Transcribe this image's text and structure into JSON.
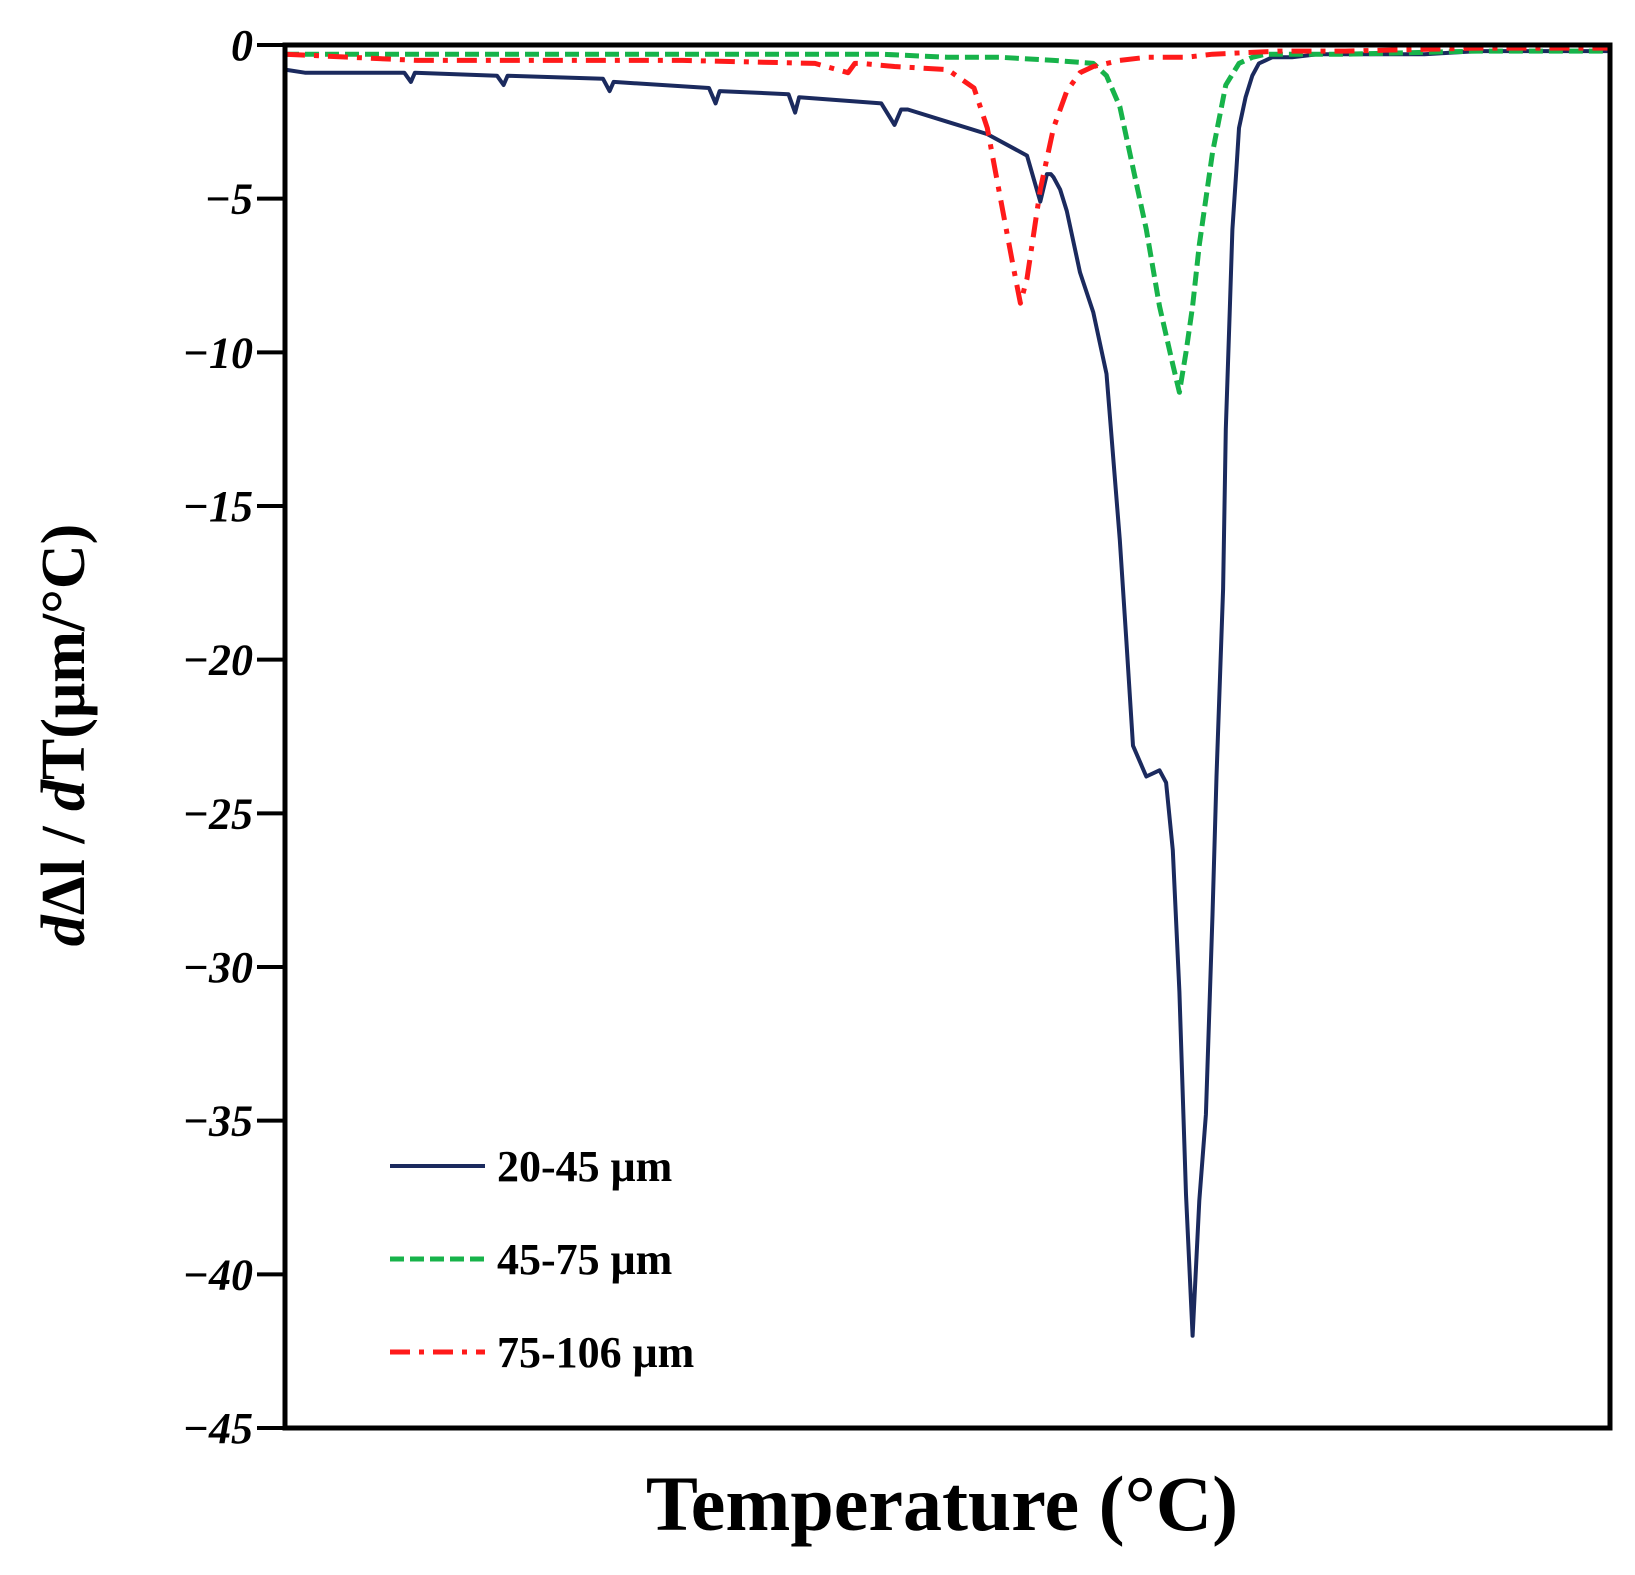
{
  "chart_data": {
    "type": "line",
    "title": "",
    "xlabel": "Temperature (°C)",
    "ylabel": {
      "d1": "d",
      "delta": "Δl",
      "slash": " / ",
      "d2": "d",
      "rest": "T(μm/°C)"
    },
    "ylim": [
      -45,
      0
    ],
    "xlim": [
      0,
      100
    ],
    "yticks": [
      {
        "value": 0,
        "label": "0"
      },
      {
        "value": -5,
        "label": "−5"
      },
      {
        "value": -10,
        "label": "−10"
      },
      {
        "value": -15,
        "label": "−15"
      },
      {
        "value": -20,
        "label": "−20"
      },
      {
        "value": -25,
        "label": "−25"
      },
      {
        "value": -30,
        "label": "−30"
      },
      {
        "value": -35,
        "label": "−35"
      },
      {
        "value": -40,
        "label": "−40"
      },
      {
        "value": -45,
        "label": "−45"
      }
    ],
    "x_tick_labels_shown": false,
    "legend_position": "bottom-left",
    "series": [
      {
        "name": "20-45 μm",
        "color": "#1b2a5e",
        "dash": "solid",
        "x": [
          0,
          1.5,
          9,
          9.5,
          9.8,
          16,
          16.5,
          16.8,
          24,
          24.5,
          24.8,
          32,
          32.5,
          32.8,
          38,
          38.5,
          38.8,
          45,
          46,
          46.5,
          47,
          50,
          53,
          56,
          57,
          57.5,
          57.8,
          58,
          58.5,
          59,
          60,
          61,
          62,
          63,
          63.5,
          64,
          65,
          66,
          66.5,
          67,
          67.5,
          68,
          68.5,
          69,
          69.5,
          70,
          70.3,
          70.8,
          71,
          71.3,
          71.5,
          71.8,
          72,
          72.5,
          73,
          73.5,
          74,
          74.5,
          75,
          76,
          78,
          82,
          86,
          90,
          94,
          100
        ],
        "values": [
          -0.8,
          -0.9,
          -0.9,
          -1.2,
          -0.9,
          -1.0,
          -1.3,
          -1.0,
          -1.1,
          -1.5,
          -1.2,
          -1.4,
          -1.9,
          -1.5,
          -1.6,
          -2.2,
          -1.7,
          -1.9,
          -2.6,
          -2.1,
          -2.1,
          -2.5,
          -2.9,
          -3.6,
          -5.1,
          -4.2,
          -4.2,
          -4.3,
          -4.7,
          -5.4,
          -7.4,
          -8.7,
          -10.7,
          -16.1,
          -19.4,
          -22.8,
          -23.8,
          -23.6,
          -24.0,
          -26.2,
          -30.8,
          -37.4,
          -42.0,
          -37.6,
          -34.8,
          -28.3,
          -23.8,
          -17.7,
          -12.5,
          -8.7,
          -6.0,
          -4.1,
          -2.7,
          -1.7,
          -1.0,
          -0.6,
          -0.5,
          -0.4,
          -0.4,
          -0.4,
          -0.3,
          -0.3,
          -0.3,
          -0.2,
          -0.2,
          -0.2
        ]
      },
      {
        "name": "45-75 μm",
        "color": "#17b34a",
        "dash": "dashed",
        "x": [
          0,
          10,
          20,
          30,
          40,
          45,
          50,
          54,
          58,
          61,
          62,
          63,
          64,
          65,
          66,
          67,
          67.5,
          68,
          68.5,
          69,
          70,
          71,
          72,
          73,
          74,
          75,
          80,
          90,
          100
        ],
        "values": [
          -0.3,
          -0.3,
          -0.3,
          -0.3,
          -0.3,
          -0.3,
          -0.4,
          -0.4,
          -0.5,
          -0.6,
          -1.0,
          -2.0,
          -4.0,
          -6.0,
          -8.5,
          -10.4,
          -11.3,
          -10.0,
          -8.5,
          -6.5,
          -3.5,
          -1.3,
          -0.6,
          -0.4,
          -0.3,
          -0.3,
          -0.3,
          -0.2,
          -0.2
        ]
      },
      {
        "name": "75-106 μm",
        "color": "#ff1a1a",
        "dash": "dashdot",
        "x": [
          0,
          10,
          20,
          30,
          40,
          42.5,
          43,
          43.5,
          46,
          50,
          52,
          53,
          54,
          55,
          55.5,
          56,
          57,
          58,
          59,
          60,
          61,
          63,
          65,
          68,
          70,
          75,
          80,
          90,
          100
        ],
        "values": [
          -0.3,
          -0.5,
          -0.5,
          -0.5,
          -0.6,
          -0.9,
          -0.6,
          -0.6,
          -0.7,
          -0.8,
          -1.4,
          -2.7,
          -5.0,
          -7.3,
          -8.4,
          -7.6,
          -4.7,
          -2.7,
          -1.5,
          -0.9,
          -0.7,
          -0.5,
          -0.4,
          -0.4,
          -0.3,
          -0.2,
          -0.2,
          -0.1,
          -0.1
        ]
      }
    ]
  }
}
